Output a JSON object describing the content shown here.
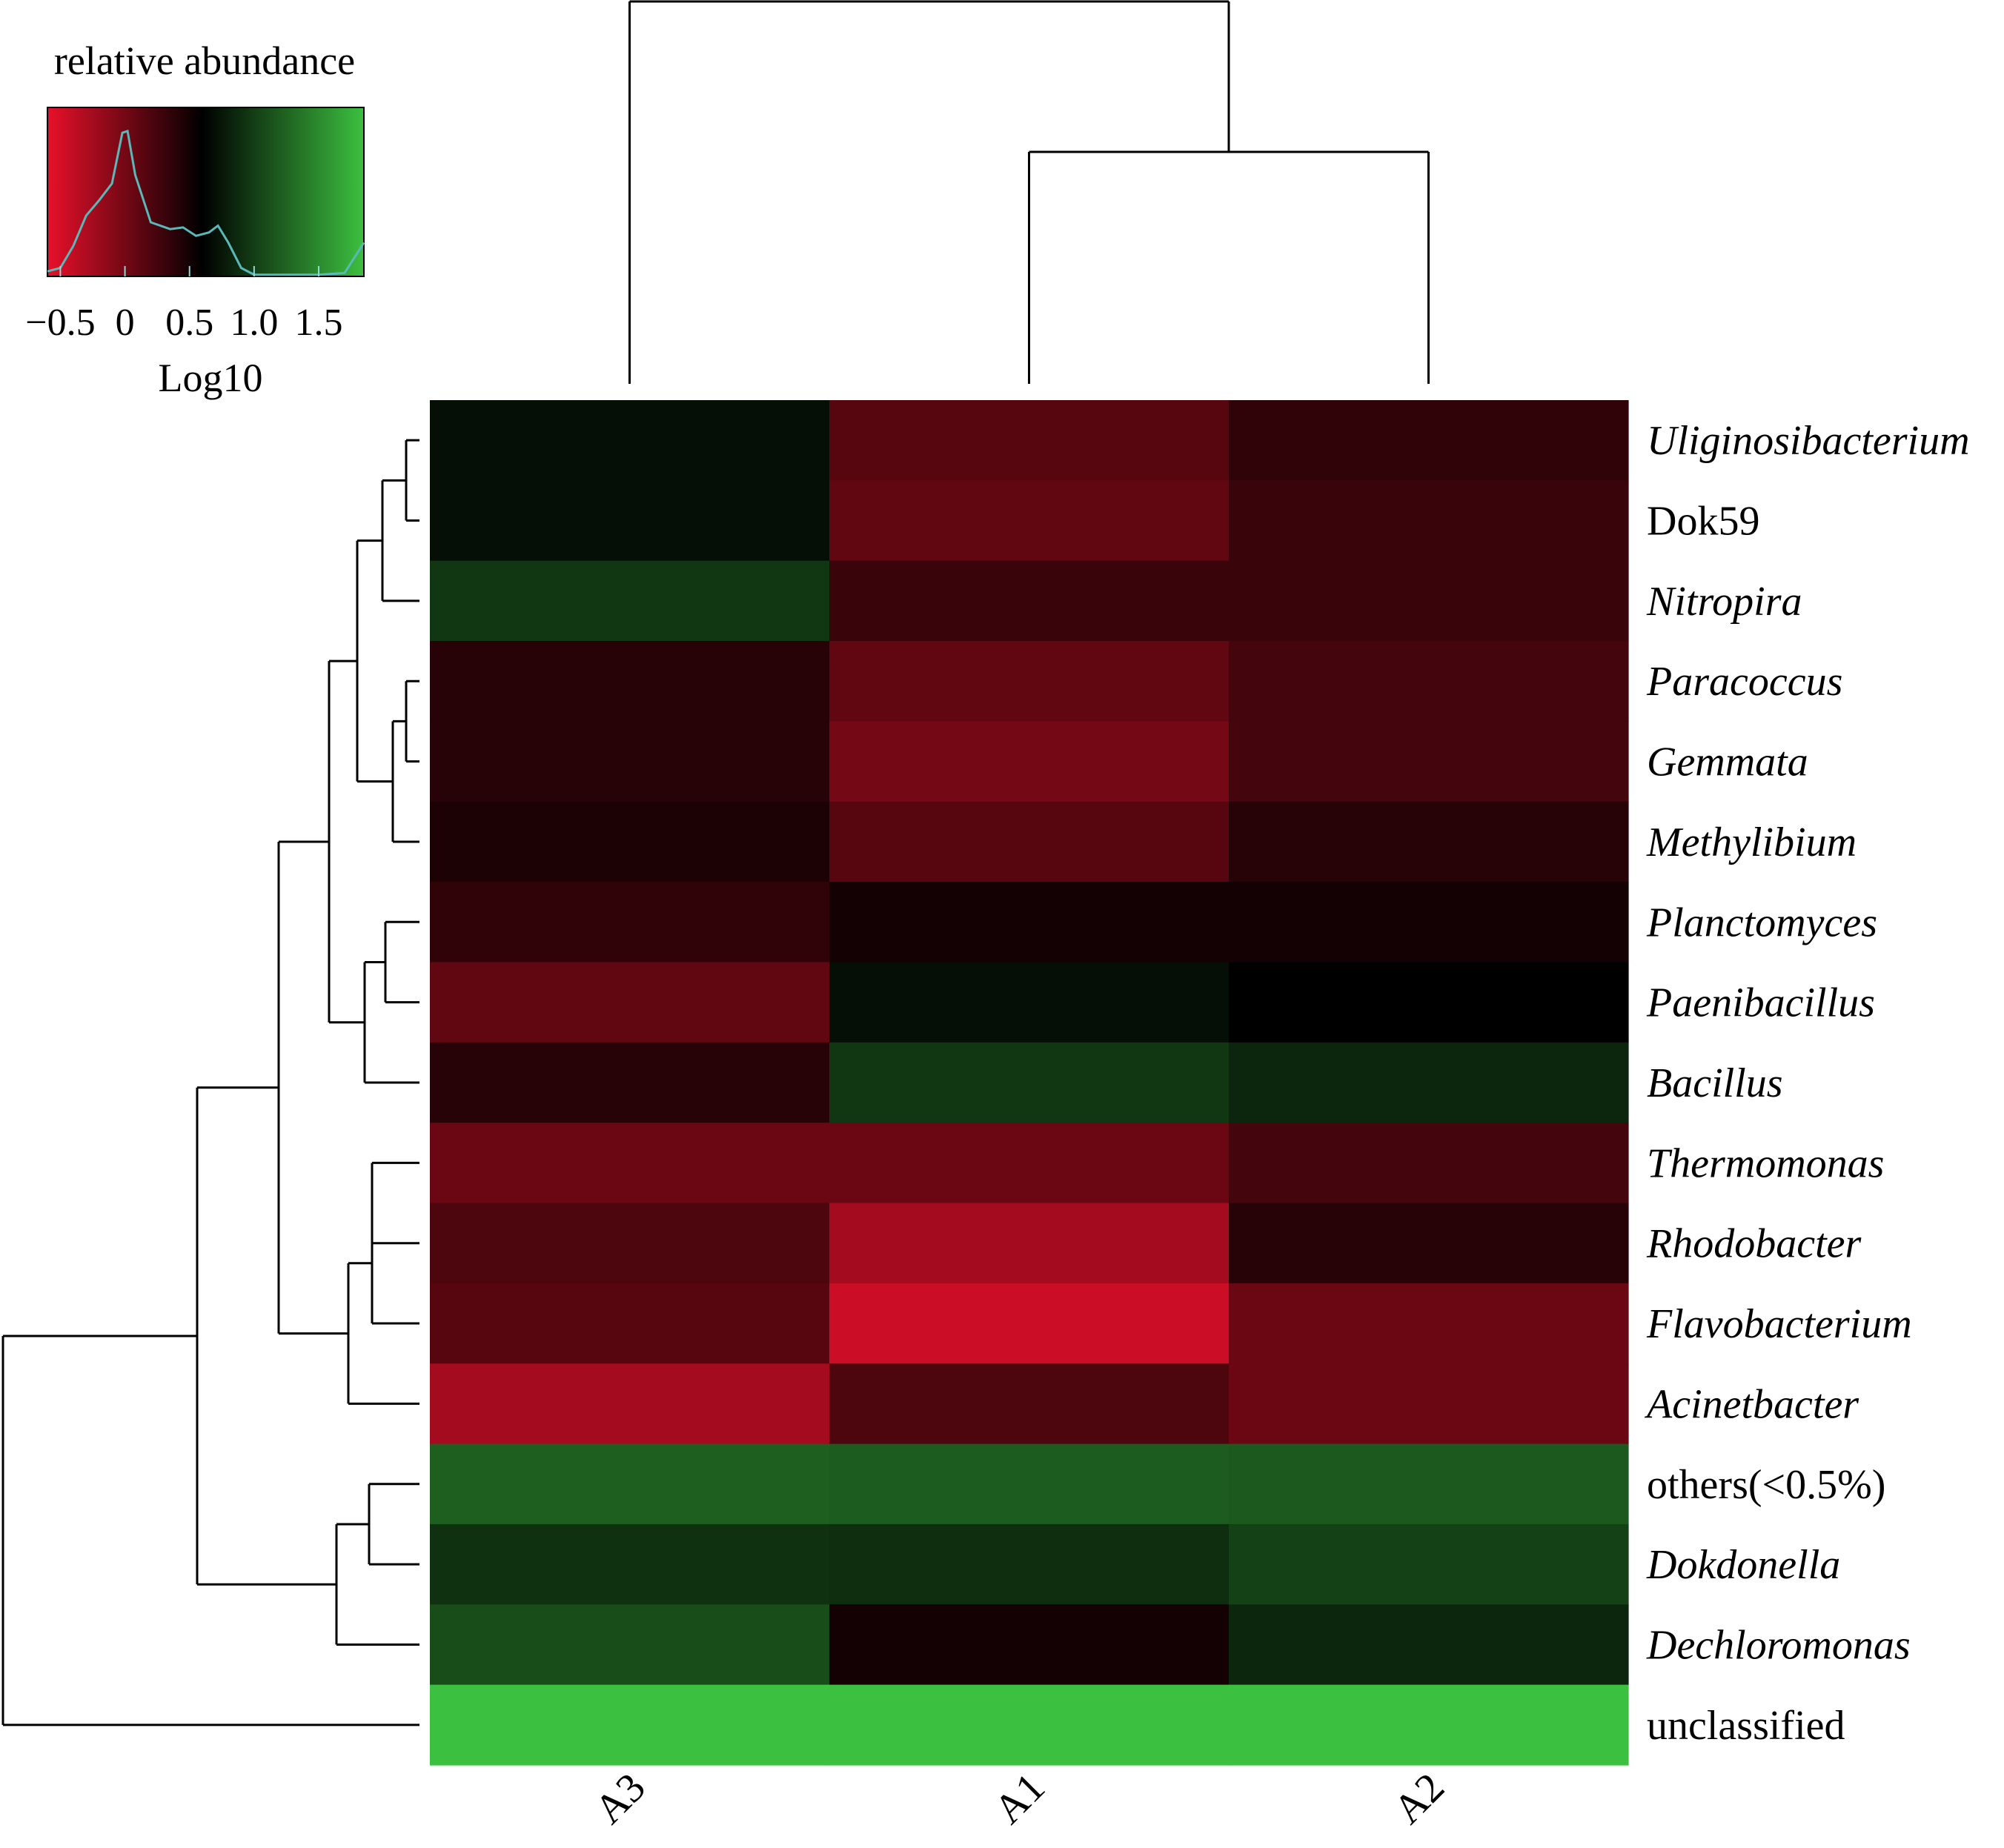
{
  "chart_data": {
    "type": "heatmap",
    "title": "",
    "columns": [
      "A3",
      "A1",
      "A2"
    ],
    "rows": [
      {
        "label": "Uliginosibacterium",
        "italic": true
      },
      {
        "label": "Dok59",
        "italic": false
      },
      {
        "label": "Nitropira",
        "italic": true
      },
      {
        "label": "Paracoccus",
        "italic": true
      },
      {
        "label": "Gemmata",
        "italic": true
      },
      {
        "label": "Methylibium",
        "italic": true
      },
      {
        "label": "Planctomyces",
        "italic": true
      },
      {
        "label": "Paenibacillus",
        "italic": true
      },
      {
        "label": "Bacillus",
        "italic": true
      },
      {
        "label": "Thermomonas",
        "italic": true
      },
      {
        "label": "Rhodobacter",
        "italic": true
      },
      {
        "label": "Flavobacterium",
        "italic": true
      },
      {
        "label": "Acinetbacter",
        "italic": true
      },
      {
        "label": "others(<0.5%)",
        "italic": false
      },
      {
        "label": "Dokdonella",
        "italic": true
      },
      {
        "label": "Dechloromonas",
        "italic": true
      },
      {
        "label": "unclassified",
        "italic": false
      }
    ],
    "values": [
      [
        0.7,
        0.15,
        0.35
      ],
      [
        0.7,
        0.1,
        0.3
      ],
      [
        0.95,
        0.3,
        0.3
      ],
      [
        0.4,
        0.1,
        0.25
      ],
      [
        0.4,
        0.0,
        0.25
      ],
      [
        0.45,
        0.15,
        0.4
      ],
      [
        0.35,
        0.5,
        0.5
      ],
      [
        0.1,
        0.7,
        0.6
      ],
      [
        0.4,
        0.95,
        0.85
      ],
      [
        0.05,
        0.05,
        0.25
      ],
      [
        0.2,
        -0.25,
        0.4
      ],
      [
        0.15,
        -0.45,
        0.05
      ],
      [
        -0.25,
        0.2,
        0.05
      ],
      [
        1.22,
        1.2,
        1.18
      ],
      [
        0.92,
        0.9,
        1.02
      ],
      [
        1.1,
        0.5,
        0.85
      ],
      [
        1.85,
        1.85,
        1.85
      ]
    ],
    "legend": {
      "title": "relative abundance",
      "axis_label": "Log10",
      "ticks": [
        "−0.5",
        "0",
        "0.5",
        "1.0",
        "1.5"
      ],
      "tick_values": [
        -0.5,
        0,
        0.5,
        1.0,
        1.5
      ],
      "range": [
        -0.6,
        1.85
      ],
      "colors": [
        "#e8102a",
        "#000000",
        "#3cc040"
      ],
      "color_stops": [
        -0.6,
        0.6,
        1.85
      ],
      "histogram_color": "#5ab8b8",
      "placement": "top-left"
    },
    "row_dendrogram": "left",
    "column_dendrogram": "top"
  }
}
